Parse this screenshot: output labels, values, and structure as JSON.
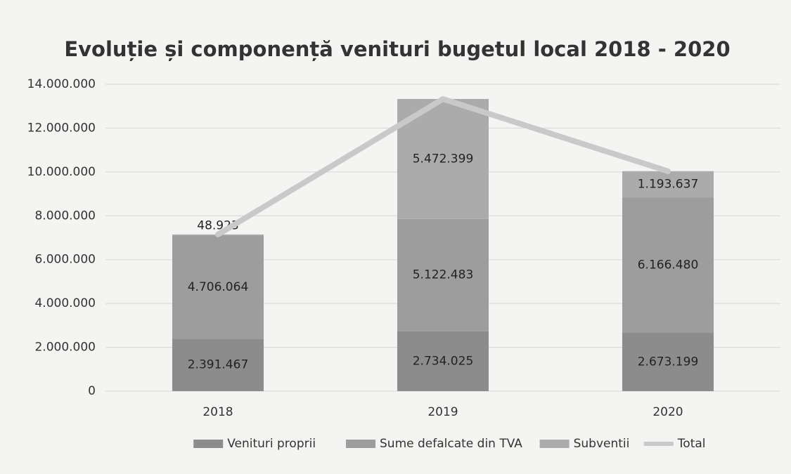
{
  "chart_data": {
    "type": "bar",
    "stacked": true,
    "title": "Evoluție și componență venituri bugetul local 2018 - 2020",
    "categories": [
      "2018",
      "2019",
      "2020"
    ],
    "series": [
      {
        "name": "Venituri proprii",
        "color": "#8c8c8c",
        "values": [
          2391467,
          2734025,
          2673199
        ],
        "value_labels": [
          "2.391.467",
          "2.734.025",
          "2.673.199"
        ]
      },
      {
        "name": "Sume defalcate din TVA",
        "color": "#9d9d9d",
        "values": [
          4706064,
          5122483,
          6166480
        ],
        "value_labels": [
          "4.706.064",
          "5.122.483",
          "6.166.480"
        ]
      },
      {
        "name": "Subventii",
        "color": "#ababab",
        "values": [
          48923,
          5472399,
          1193637
        ],
        "value_labels": [
          "48.923",
          "5.472.399",
          "1.193.637"
        ]
      },
      {
        "name": "Total",
        "type": "line",
        "color": "#c9c9c9",
        "values": [
          7146454,
          13328907,
          10033316
        ]
      }
    ],
    "ylim": [
      0,
      14000000
    ],
    "yticks": [
      0,
      {
        "value": 2000000,
        "label": "2.000.000"
      },
      {
        "value": 4000000,
        "label": "4.000.000"
      },
      {
        "value": 6000000,
        "label": "6.000.000"
      },
      {
        "value": 8000000,
        "label": "8.000.000"
      },
      {
        "value": 10000000,
        "label": "10.000.000"
      },
      {
        "value": 12000000,
        "label": "12.000.000"
      },
      {
        "value": 14000000,
        "label": "14.000.000"
      }
    ],
    "grid": true,
    "legend": "bottom"
  }
}
